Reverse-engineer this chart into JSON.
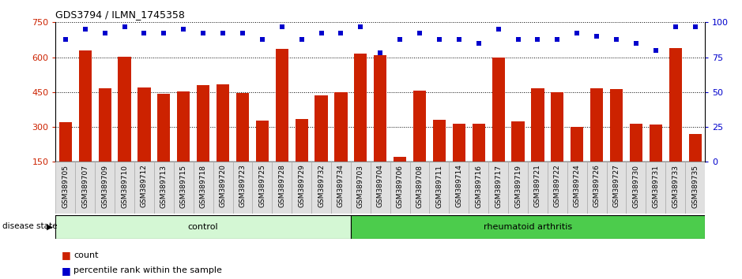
{
  "title": "GDS3794 / ILMN_1745358",
  "samples": [
    "GSM389705",
    "GSM389707",
    "GSM389709",
    "GSM389710",
    "GSM389712",
    "GSM389713",
    "GSM389715",
    "GSM389718",
    "GSM389720",
    "GSM389723",
    "GSM389725",
    "GSM389728",
    "GSM389729",
    "GSM389732",
    "GSM389734",
    "GSM389703",
    "GSM389704",
    "GSM389706",
    "GSM389708",
    "GSM389711",
    "GSM389714",
    "GSM389716",
    "GSM389717",
    "GSM389719",
    "GSM389721",
    "GSM389722",
    "GSM389724",
    "GSM389726",
    "GSM389727",
    "GSM389730",
    "GSM389731",
    "GSM389733",
    "GSM389735"
  ],
  "counts": [
    320,
    630,
    465,
    603,
    470,
    442,
    452,
    480,
    482,
    445,
    328,
    637,
    335,
    437,
    450,
    615,
    610,
    170,
    455,
    330,
    313,
    313,
    600,
    325,
    465,
    450,
    300,
    465,
    463,
    315,
    310,
    640,
    270
  ],
  "percentile_ranks": [
    88,
    95,
    92,
    97,
    92,
    92,
    95,
    92,
    92,
    92,
    88,
    97,
    88,
    92,
    92,
    97,
    78,
    88,
    92,
    88,
    88,
    85,
    95,
    88,
    88,
    88,
    92,
    90,
    88,
    85,
    80,
    97,
    97
  ],
  "ctrl_count": 15,
  "ra_count": 18,
  "ctrl_label": "control",
  "ra_label": "rheumatoid arthritis",
  "ctrl_color": "#d4f7d4",
  "ra_color": "#4ccc4c",
  "bar_color": "#cc2200",
  "dot_color": "#0000cc",
  "ylim_left": [
    150,
    750
  ],
  "ylim_right": [
    0,
    100
  ],
  "yticks_left": [
    150,
    300,
    450,
    600,
    750
  ],
  "yticks_right": [
    0,
    25,
    50,
    75,
    100
  ],
  "disease_state_label": "disease state",
  "legend_count": "count",
  "legend_pct": "percentile rank within the sample"
}
